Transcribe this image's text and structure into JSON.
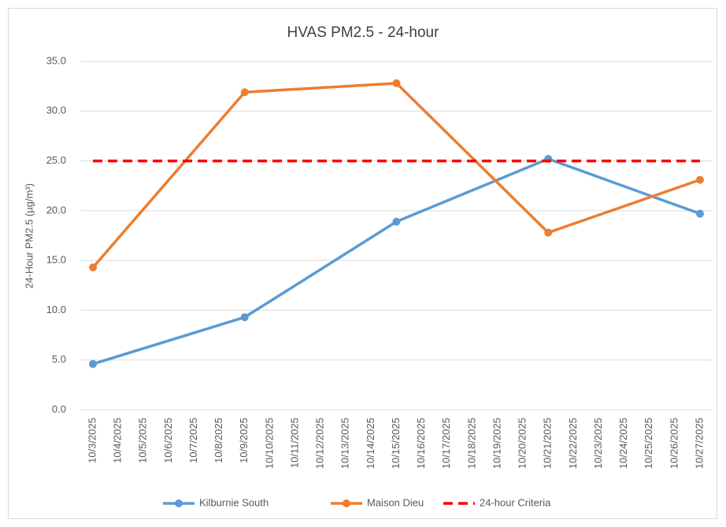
{
  "chart_data": {
    "type": "line",
    "title": "HVAS PM2.5 - 24-hour",
    "y_label": "24-Hour PM2.5 (µg/m³)",
    "categories": [
      "10/3/2025",
      "10/4/2025",
      "10/5/2025",
      "10/6/2025",
      "10/7/2025",
      "10/8/2025",
      "10/9/2025",
      "10/10/2025",
      "10/11/2025",
      "10/12/2025",
      "10/13/2025",
      "10/14/2025",
      "10/15/2025",
      "10/16/2025",
      "10/17/2025",
      "10/18/2025",
      "10/19/2025",
      "10/20/2025",
      "10/21/2025",
      "10/22/2025",
      "10/23/2025",
      "10/24/2025",
      "10/25/2025",
      "10/26/2025",
      "10/27/2025"
    ],
    "series": [
      {
        "name": "Kilburnie South",
        "color": "#5b9bd5",
        "marker": true,
        "dashed": false,
        "x": [
          "10/3/2025",
          "10/9/2025",
          "10/15/2025",
          "10/21/2025",
          "10/27/2025"
        ],
        "values": [
          4.6,
          9.3,
          18.9,
          25.2,
          19.7
        ]
      },
      {
        "name": "Maison Dieu",
        "color": "#ed7d31",
        "marker": true,
        "dashed": false,
        "x": [
          "10/3/2025",
          "10/9/2025",
          "10/15/2025",
          "10/21/2025",
          "10/27/2025"
        ],
        "values": [
          14.3,
          31.9,
          32.8,
          17.8,
          23.1
        ]
      },
      {
        "name": "24-hour Criteria",
        "color": "#ff0000",
        "marker": false,
        "dashed": true,
        "x": [
          "10/3/2025",
          "10/27/2025"
        ],
        "values": [
          25,
          25
        ]
      }
    ],
    "ylim": [
      0,
      35
    ],
    "yticks": [
      {
        "value": 0,
        "label": "0.0"
      },
      {
        "value": 5,
        "label": "5.0"
      },
      {
        "value": 10,
        "label": "10.0"
      },
      {
        "value": 15,
        "label": "15.0"
      },
      {
        "value": 20,
        "label": "20.0"
      },
      {
        "value": 25,
        "label": "25.0"
      },
      {
        "value": 30,
        "label": "30.0"
      },
      {
        "value": 35,
        "label": "35.0"
      }
    ],
    "grid": true,
    "legend": "bottom"
  }
}
